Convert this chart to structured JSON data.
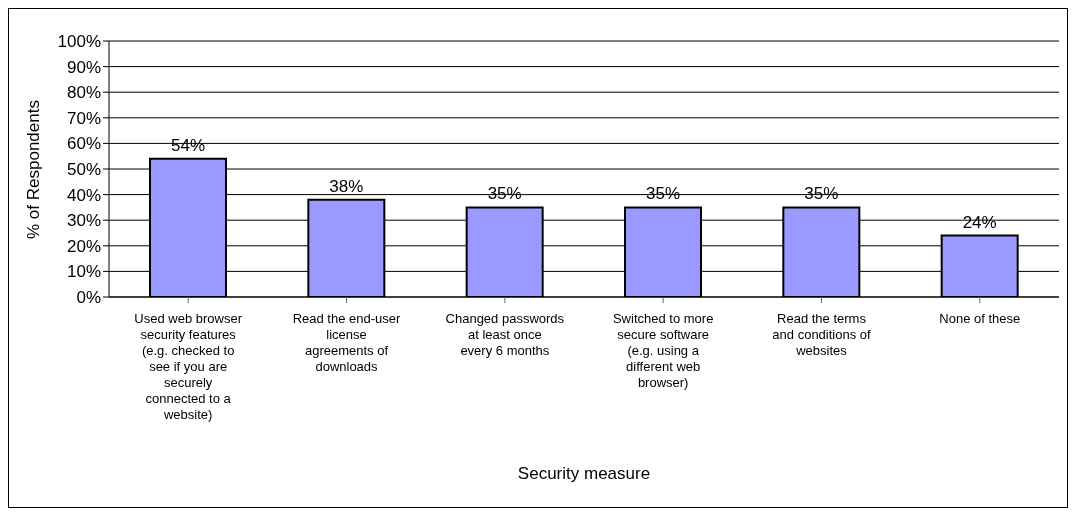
{
  "chart_data": {
    "type": "bar",
    "xlabel": "Security measure",
    "ylabel": "% of Respondents",
    "categories": [
      "Used web browser security features (e.g. checked to see if you are securely connected to a website)",
      "Read the end-user license agreements of downloads",
      "Changed passwords at least once every 6 months",
      "Switched to more secure software (e.g. using a different web browser)",
      "Read the terms and conditions of websites",
      "None of these"
    ],
    "values": [
      54,
      38,
      35,
      35,
      35,
      24
    ],
    "value_labels": [
      "54%",
      "38%",
      "35%",
      "35%",
      "35%",
      "24%"
    ],
    "color": "#9999ff",
    "ylim": [
      0,
      100
    ],
    "yticks": [
      {
        "value": 0,
        "label": "0%"
      },
      {
        "value": 10,
        "label": "10%"
      },
      {
        "value": 20,
        "label": "20%"
      },
      {
        "value": 30,
        "label": "30%"
      },
      {
        "value": 40,
        "label": "40%"
      },
      {
        "value": 50,
        "label": "50%"
      },
      {
        "value": 60,
        "label": "60%"
      },
      {
        "value": 70,
        "label": "70%"
      },
      {
        "value": 80,
        "label": "80%"
      },
      {
        "value": 90,
        "label": "90%"
      },
      {
        "value": 100,
        "label": "100%"
      }
    ],
    "grid": "y",
    "legend": false
  }
}
